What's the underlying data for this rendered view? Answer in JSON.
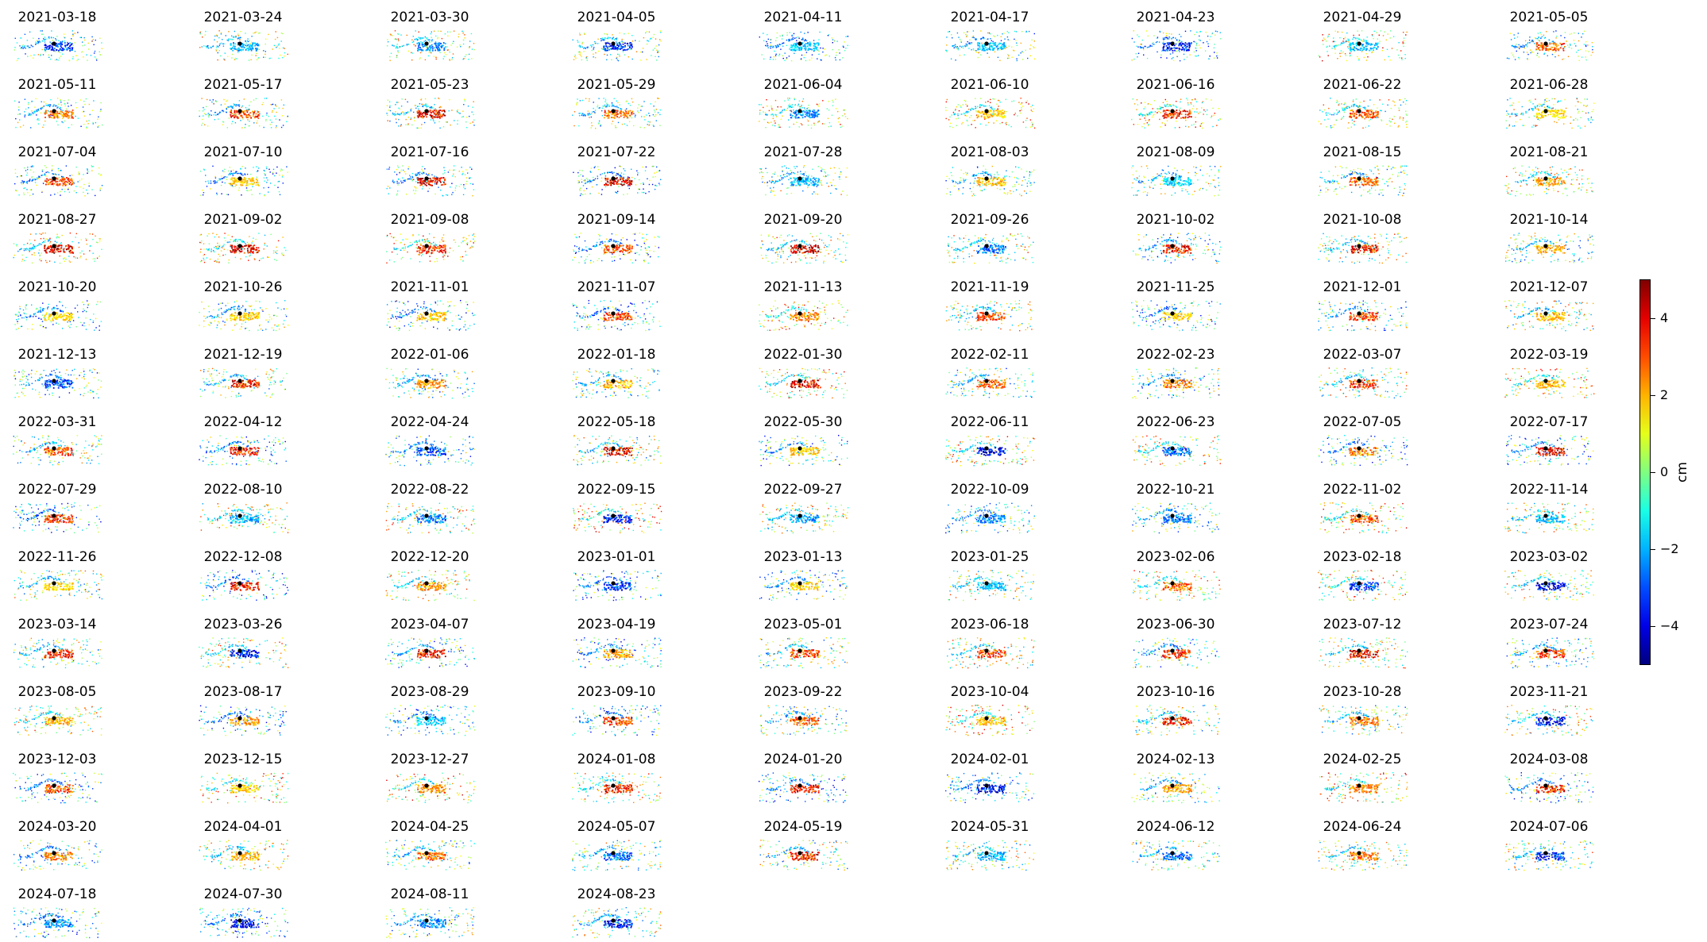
{
  "chart_data": {
    "type": "scatter",
    "panel_titles": [
      "2021-03-18",
      "2021-03-24",
      "2021-03-30",
      "2021-04-05",
      "2021-04-11",
      "2021-04-17",
      "2021-04-23",
      "2021-04-29",
      "2021-05-05",
      "2021-05-11",
      "2021-05-17",
      "2021-05-23",
      "2021-05-29",
      "2021-06-04",
      "2021-06-10",
      "2021-06-16",
      "2021-06-22",
      "2021-06-28",
      "2021-07-04",
      "2021-07-10",
      "2021-07-16",
      "2021-07-22",
      "2021-07-28",
      "2021-08-03",
      "2021-08-09",
      "2021-08-15",
      "2021-08-21",
      "2021-08-27",
      "2021-09-02",
      "2021-09-08",
      "2021-09-14",
      "2021-09-20",
      "2021-09-26",
      "2021-10-02",
      "2021-10-08",
      "2021-10-14",
      "2021-10-20",
      "2021-10-26",
      "2021-11-01",
      "2021-11-07",
      "2021-11-13",
      "2021-11-19",
      "2021-11-25",
      "2021-12-01",
      "2021-12-07",
      "2021-12-13",
      "2021-12-19",
      "2022-01-06",
      "2022-01-18",
      "2022-01-30",
      "2022-02-11",
      "2022-02-23",
      "2022-03-07",
      "2022-03-19",
      "2022-03-31",
      "2022-04-12",
      "2022-04-24",
      "2022-05-18",
      "2022-05-30",
      "2022-06-11",
      "2022-06-23",
      "2022-07-05",
      "2022-07-17",
      "2022-07-29",
      "2022-08-10",
      "2022-08-22",
      "2022-09-15",
      "2022-09-27",
      "2022-10-09",
      "2022-10-21",
      "2022-11-02",
      "2022-11-14",
      "2022-11-26",
      "2022-12-08",
      "2022-12-20",
      "2023-01-01",
      "2023-01-13",
      "2023-01-25",
      "2023-02-06",
      "2023-02-18",
      "2023-03-02",
      "2023-03-14",
      "2023-03-26",
      "2023-04-07",
      "2023-04-19",
      "2023-05-01",
      "2023-06-18",
      "2023-06-30",
      "2023-07-12",
      "2023-07-24",
      "2023-08-05",
      "2023-08-17",
      "2023-08-29",
      "2023-09-10",
      "2023-09-22",
      "2023-10-04",
      "2023-10-16",
      "2023-10-28",
      "2023-11-21",
      "2023-12-03",
      "2023-12-15",
      "2023-12-27",
      "2024-01-08",
      "2024-01-20",
      "2024-02-01",
      "2024-02-13",
      "2024-02-25",
      "2024-03-08",
      "2024-03-20",
      "2024-04-01",
      "2024-04-25",
      "2024-05-07",
      "2024-05-19",
      "2024-05-31",
      "2024-06-12",
      "2024-06-24",
      "2024-07-06",
      "2024-07-18",
      "2024-07-30",
      "2024-08-11",
      "2024-08-23"
    ],
    "colormap": "jet",
    "clim": [
      -5,
      5
    ],
    "axes_visible": false,
    "colorbar": {
      "label": "cm",
      "ticks": [
        4,
        2,
        0,
        -2,
        -4
      ],
      "tick_labels": [
        "4",
        "2",
        "0",
        "−2",
        "−4"
      ],
      "position": "right"
    },
    "core_sign": [
      -1,
      -1,
      -1,
      -1,
      -1,
      -1,
      -1,
      -1,
      1,
      1,
      1,
      1,
      1,
      -1,
      1,
      1,
      1,
      1,
      1,
      1,
      1,
      1,
      -1,
      1,
      -1,
      1,
      1,
      1,
      1,
      1,
      1,
      1,
      -1,
      1,
      1,
      1,
      1,
      1,
      1,
      1,
      1,
      1,
      1,
      1,
      1,
      -1,
      1,
      1,
      1,
      1,
      1,
      1,
      1,
      1,
      1,
      1,
      -1,
      1,
      1,
      -1,
      -1,
      1,
      1,
      1,
      -1,
      -1,
      -1,
      -1,
      -1,
      -1,
      1,
      -1,
      1,
      1,
      1,
      -1,
      1,
      -1,
      1,
      -1,
      -1,
      1,
      -1,
      1,
      1,
      1,
      1,
      1,
      1,
      1,
      1,
      1,
      -1,
      1,
      1,
      1,
      1,
      1,
      -1,
      1,
      1,
      1,
      1,
      1,
      -1,
      1,
      1,
      1,
      1,
      1,
      1,
      -1,
      1,
      -1,
      -1,
      1,
      -1,
      -1,
      -1,
      -1,
      -1
    ]
  }
}
